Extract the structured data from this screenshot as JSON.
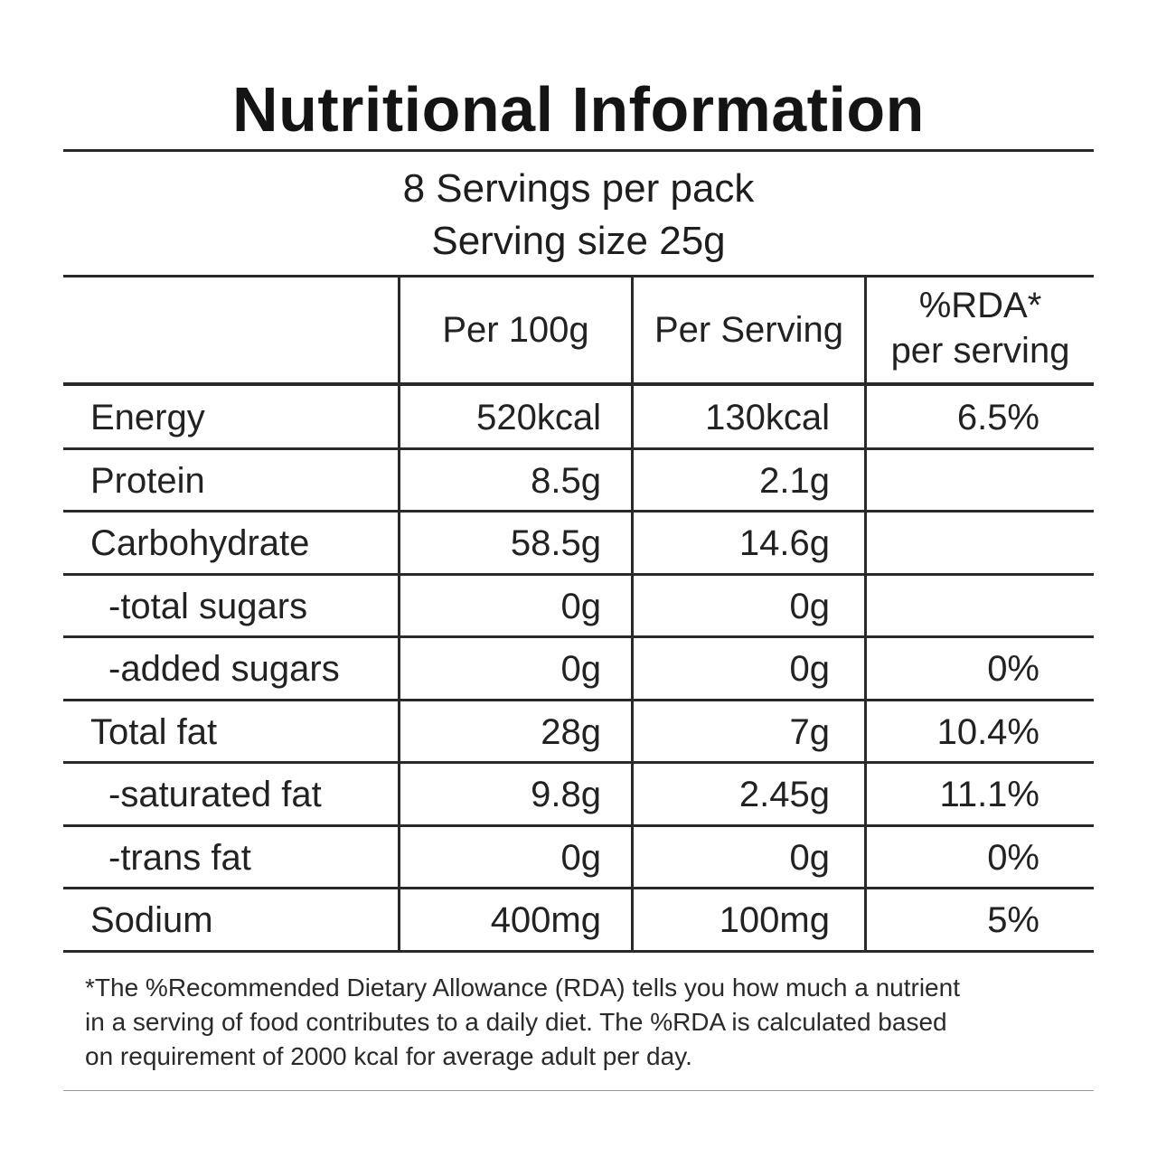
{
  "title": "Nutritional Information",
  "servings_per_pack": "8 Servings per pack",
  "serving_size": "Serving size 25g",
  "columns": {
    "per_100g": "Per 100g",
    "per_serving": "Per Serving",
    "rda_line1": "%RDA*",
    "rda_line2": "per serving"
  },
  "rows": [
    {
      "name": "Energy",
      "per_100g": "520kcal",
      "per_serving": "130kcal",
      "rda": "6.5%"
    },
    {
      "name": "Protein",
      "per_100g": "8.5g",
      "per_serving": "2.1g",
      "rda": ""
    },
    {
      "name": "Carbohydrate",
      "per_100g": "58.5g",
      "per_serving": "14.6g",
      "rda": ""
    },
    {
      "name": "-total sugars",
      "per_100g": "0g",
      "per_serving": "0g",
      "rda": ""
    },
    {
      "name": "-added sugars",
      "per_100g": "0g",
      "per_serving": "0g",
      "rda": "0%"
    },
    {
      "name": "Total  fat",
      "per_100g": "28g",
      "per_serving": "7g",
      "rda": "10.4%"
    },
    {
      "name": "-saturated fat",
      "per_100g": "9.8g",
      "per_serving": "2.45g",
      "rda": "11.1%"
    },
    {
      "name": "-trans fat",
      "per_100g": "0g",
      "per_serving": "0g",
      "rda": "0%"
    },
    {
      "name": "Sodium",
      "per_100g": "400mg",
      "per_serving": "100mg",
      "rda": "5%"
    }
  ],
  "footnote": {
    "line1": "*The %Recommended Dietary Allowance (RDA) tells you how much a nutrient",
    "line2": "in a serving of food contributes to a daily diet. The %RDA is calculated based",
    "line3": "on requirement of 2000 kcal for average adult per day."
  }
}
